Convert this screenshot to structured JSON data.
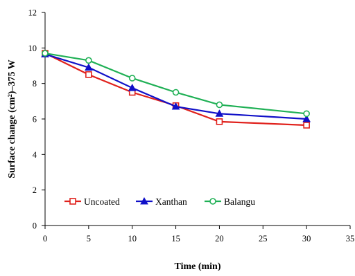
{
  "chart_data": {
    "type": "line",
    "title": "",
    "xlabel": "Time (min)",
    "ylabel": "Surface change (cm²)–375 W",
    "xlim": [
      0,
      35
    ],
    "ylim": [
      0,
      12
    ],
    "xticks": [
      "0",
      "5",
      "10",
      "15",
      "20",
      "25",
      "30",
      "35"
    ],
    "yticks": [
      "0",
      "2",
      "4",
      "6",
      "8",
      "10",
      "12"
    ],
    "grid": false,
    "legend_position": "lower-center",
    "x": [
      0,
      5,
      10,
      15,
      20,
      30
    ],
    "series": [
      {
        "name": "Uncoated",
        "values": [
          9.7,
          8.5,
          7.5,
          6.75,
          5.85,
          5.65
        ],
        "color": "#e0211c",
        "marker": "square"
      },
      {
        "name": "Xanthan",
        "values": [
          9.65,
          8.9,
          7.75,
          6.7,
          6.3,
          6.0
        ],
        "color": "#1010c8",
        "marker": "triangle"
      },
      {
        "name": "Balangu",
        "values": [
          9.7,
          9.3,
          8.3,
          7.5,
          6.8,
          6.3
        ],
        "color": "#1fb055",
        "marker": "circle"
      }
    ]
  }
}
